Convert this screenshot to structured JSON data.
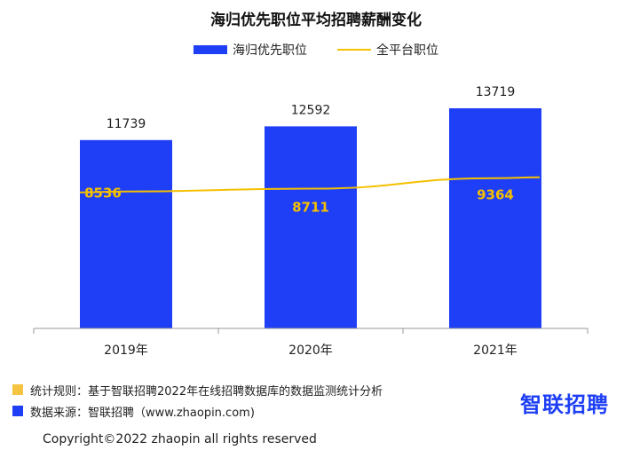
{
  "chart_data": {
    "type": "bar",
    "title": "海归优先职位平均招聘薪酬变化",
    "categories": [
      "2019年",
      "2020年",
      "2021年"
    ],
    "series": [
      {
        "name": "海归优先职位",
        "type": "bar",
        "color": "#1e3ff5",
        "values": [
          11739,
          12592,
          13719
        ]
      },
      {
        "name": "全平台职位",
        "type": "line",
        "color": "#f5c000",
        "values": [
          8536,
          8711,
          9364
        ]
      }
    ],
    "ylim": [
      0,
      14500
    ],
    "grid": false,
    "legend": "top-center"
  },
  "notes": {
    "rule": {
      "text": "统计规则：基于智联招聘2022年在线招聘数据库的数据监测统计分析",
      "color": "#f5c542"
    },
    "source": {
      "text": "数据来源：智联招聘（www.zhaopin.com)",
      "color": "#1e3ff5"
    }
  },
  "logo": "智联招聘",
  "copyright": "Copyright©2022 zhaopin all rights reserved"
}
